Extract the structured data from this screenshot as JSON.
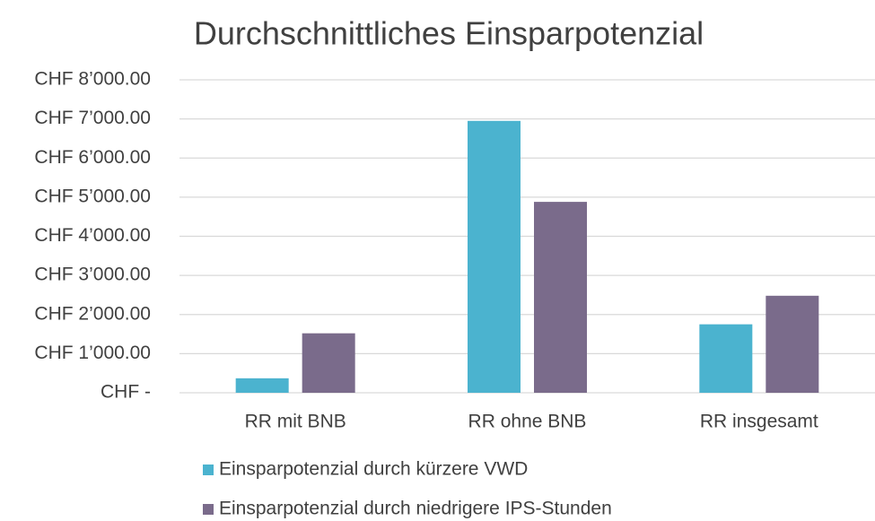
{
  "chart_data": {
    "type": "bar",
    "title": "Durchschnittliches Einsparpotenzial",
    "categories": [
      "RR mit BNB",
      "RR ohne BNB",
      "RR insgesamt"
    ],
    "series": [
      {
        "name": "Einsparpotenzial durch kürzere VWD",
        "color": "#4bb3cf",
        "values": [
          370,
          6950,
          1750
        ]
      },
      {
        "name": "Einsparpotenzial durch niedrigere IPS-Stunden",
        "color": "#7a6b8b",
        "values": [
          1520,
          4880,
          2480
        ]
      }
    ],
    "ylim": [
      0,
      8000
    ],
    "yticks": [
      {
        "value": 0,
        "label": "CHF -"
      },
      {
        "value": 1000,
        "label": "CHF 1’000.00"
      },
      {
        "value": 2000,
        "label": "CHF 2’000.00"
      },
      {
        "value": 3000,
        "label": "CHF 3’000.00"
      },
      {
        "value": 4000,
        "label": "CHF 4’000.00"
      },
      {
        "value": 5000,
        "label": "CHF 5’000.00"
      },
      {
        "value": 6000,
        "label": "CHF 6’000.00"
      },
      {
        "value": 7000,
        "label": "CHF 7’000.00"
      },
      {
        "value": 8000,
        "label": "CHF 8’000.00"
      }
    ],
    "grid": true,
    "legend": "bottom"
  }
}
